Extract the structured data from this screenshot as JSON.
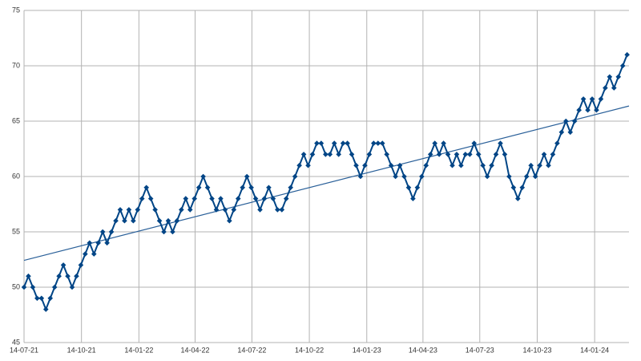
{
  "chart_data": {
    "type": "line",
    "color": "#004586",
    "trendline": true,
    "trend_color": "#2a6099",
    "grid": true,
    "x": [
      "2021-07-14",
      "2021-07-21",
      "2021-07-28",
      "2021-08-04",
      "2021-08-11",
      "2021-08-18",
      "2021-08-25",
      "2021-09-01",
      "2021-09-08",
      "2021-09-15",
      "2021-09-22",
      "2021-09-29",
      "2021-10-06",
      "2021-10-13",
      "2021-10-20",
      "2021-10-27",
      "2021-11-03",
      "2021-11-10",
      "2021-11-17",
      "2021-11-24",
      "2021-12-01",
      "2021-12-08",
      "2021-12-15",
      "2021-12-22",
      "2021-12-29",
      "2022-01-05",
      "2022-01-12",
      "2022-01-19",
      "2022-01-26",
      "2022-02-02",
      "2022-02-09",
      "2022-02-16",
      "2022-02-23",
      "2022-03-02",
      "2022-03-09",
      "2022-03-16",
      "2022-03-23",
      "2022-03-30",
      "2022-04-06",
      "2022-04-13",
      "2022-04-20",
      "2022-04-27",
      "2022-05-04",
      "2022-05-11",
      "2022-05-18",
      "2022-05-25",
      "2022-06-01",
      "2022-06-08",
      "2022-06-15",
      "2022-06-22",
      "2022-06-29",
      "2022-07-06",
      "2022-07-13",
      "2022-07-20",
      "2022-07-27",
      "2022-08-03",
      "2022-08-10",
      "2022-08-17",
      "2022-08-24",
      "2022-08-31",
      "2022-09-07",
      "2022-09-14",
      "2022-09-21",
      "2022-09-28",
      "2022-10-05",
      "2022-10-12",
      "2022-10-19",
      "2022-10-26",
      "2022-11-02",
      "2022-11-09",
      "2022-11-16",
      "2022-11-23",
      "2022-11-30",
      "2022-12-07",
      "2022-12-14",
      "2022-12-21",
      "2022-12-28",
      "2023-01-04",
      "2023-01-11",
      "2023-01-18",
      "2023-01-25",
      "2023-02-01",
      "2023-02-08",
      "2023-02-15",
      "2023-02-22",
      "2023-03-01",
      "2023-03-08",
      "2023-03-15",
      "2023-03-22",
      "2023-03-29",
      "2023-04-05",
      "2023-04-12",
      "2023-04-19",
      "2023-04-26",
      "2023-05-03",
      "2023-05-10",
      "2023-05-17",
      "2023-05-24",
      "2023-05-31",
      "2023-06-07",
      "2023-06-14",
      "2023-06-21",
      "2023-06-28",
      "2023-07-05",
      "2023-07-12",
      "2023-07-19",
      "2023-07-26",
      "2023-08-02",
      "2023-08-09",
      "2023-08-16",
      "2023-08-23",
      "2023-08-30",
      "2023-09-06",
      "2023-09-13",
      "2023-09-20",
      "2023-09-27",
      "2023-10-04",
      "2023-10-11",
      "2023-10-18",
      "2023-10-25",
      "2023-11-01",
      "2023-11-08",
      "2023-11-15",
      "2023-11-22",
      "2023-11-29",
      "2023-12-06",
      "2023-12-13",
      "2023-12-20",
      "2023-12-27",
      "2024-01-03",
      "2024-01-10",
      "2024-01-17",
      "2024-01-24",
      "2024-01-31",
      "2024-02-07",
      "2024-02-14",
      "2024-02-21",
      "2024-02-28",
      "2024-03-06"
    ],
    "values": [
      50,
      51,
      50,
      49,
      49,
      48,
      49,
      50,
      51,
      52,
      51,
      50,
      51,
      52,
      53,
      54,
      53,
      54,
      55,
      54,
      55,
      56,
      57,
      56,
      57,
      56,
      57,
      58,
      59,
      58,
      57,
      56,
      55,
      56,
      55,
      56,
      57,
      58,
      57,
      58,
      59,
      60,
      59,
      58,
      57,
      58,
      57,
      56,
      57,
      58,
      59,
      60,
      59,
      58,
      57,
      58,
      59,
      58,
      57,
      57,
      58,
      59,
      60,
      61,
      62,
      61,
      62,
      63,
      63,
      62,
      62,
      63,
      62,
      63,
      63,
      62,
      61,
      60,
      61,
      62,
      63,
      63,
      63,
      62,
      61,
      60,
      61,
      60,
      59,
      58,
      59,
      60,
      61,
      62,
      63,
      62,
      63,
      62,
      61,
      62,
      61,
      62,
      62,
      63,
      62,
      61,
      60,
      61,
      62,
      63,
      62,
      60,
      59,
      58,
      59,
      60,
      61,
      60,
      61,
      62,
      61,
      62,
      63,
      64,
      65,
      64,
      65,
      66,
      67,
      66,
      67,
      66,
      67,
      68,
      69,
      68,
      69,
      70,
      71
    ],
    "xlim": [
      "2021-07-14",
      "2024-03-09"
    ],
    "xticks": [
      {
        "value": "2021-07-14",
        "label": "14-07-21"
      },
      {
        "value": "2021-10-14",
        "label": "14-10-21"
      },
      {
        "value": "2022-01-14",
        "label": "14-01-22"
      },
      {
        "value": "2022-04-14",
        "label": "14-04-22"
      },
      {
        "value": "2022-07-14",
        "label": "14-07-22"
      },
      {
        "value": "2022-10-14",
        "label": "14-10-22"
      },
      {
        "value": "2023-01-14",
        "label": "14-01-23"
      },
      {
        "value": "2023-04-14",
        "label": "14-04-23"
      },
      {
        "value": "2023-07-14",
        "label": "14-07-23"
      },
      {
        "value": "2023-10-14",
        "label": "14-10-23"
      },
      {
        "value": "2024-01-14",
        "label": "14-01-24"
      }
    ],
    "ylim": [
      45,
      75
    ],
    "yticks": [
      45,
      50,
      55,
      60,
      65,
      70,
      75
    ]
  }
}
